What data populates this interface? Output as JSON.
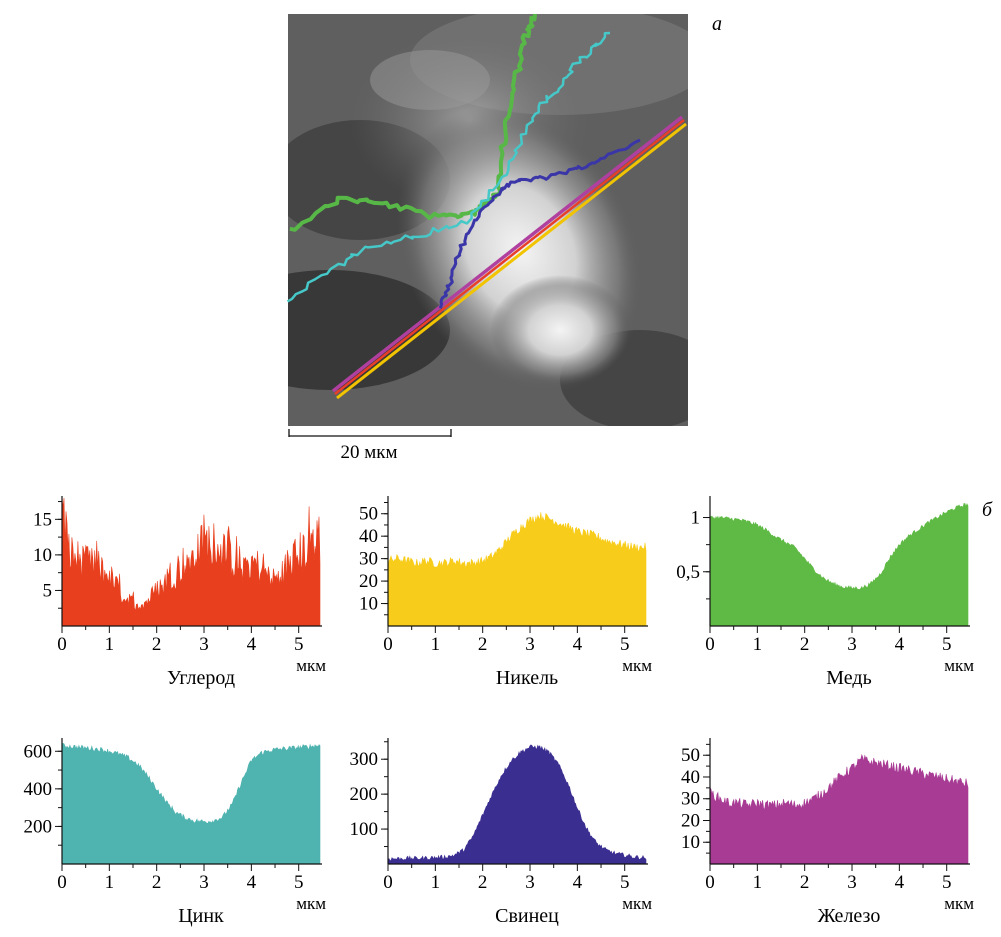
{
  "panel_a": {
    "label": "а",
    "scale_bar_label": "20 мкм",
    "trace_colors": [
      "#e83e2a",
      "#f2c400",
      "#58b847",
      "#46c8c8",
      "#3a36a8",
      "#b040a0"
    ]
  },
  "panel_b": {
    "label": "б"
  },
  "chart_data": [
    {
      "type": "area",
      "name": "Углерод",
      "color": "#e8401e",
      "xlabel": "мкм",
      "xlim": [
        0,
        5.45
      ],
      "ylim": [
        0,
        18
      ],
      "xticks": [
        "0",
        "1",
        "2",
        "3",
        "4",
        "5"
      ],
      "yticks": [
        "5",
        "10",
        "15"
      ],
      "x": [
        0,
        0.1,
        0.2,
        0.4,
        0.6,
        0.8,
        1.0,
        1.2,
        1.4,
        1.6,
        1.8,
        2.0,
        2.2,
        2.4,
        2.6,
        2.8,
        3.0,
        3.2,
        3.4,
        3.6,
        3.8,
        4.0,
        4.2,
        4.4,
        4.6,
        4.8,
        5.0,
        5.2,
        5.4
      ],
      "y": [
        17,
        12,
        10,
        9,
        8.5,
        8,
        7,
        5,
        3.5,
        3,
        3.5,
        5,
        6.5,
        7.5,
        9,
        10,
        11.5,
        12,
        10.5,
        9.5,
        8.5,
        9,
        8,
        7,
        6.5,
        9,
        10,
        11,
        12
      ]
    },
    {
      "type": "area",
      "name": "Никель",
      "color": "#f7cc1a",
      "xlabel": "мкм",
      "xlim": [
        0,
        5.45
      ],
      "ylim": [
        0,
        57
      ],
      "xticks": [
        "0",
        "1",
        "2",
        "3",
        "4",
        "5"
      ],
      "yticks": [
        "10",
        "20",
        "30",
        "40",
        "50"
      ],
      "x": [
        0,
        0.2,
        0.4,
        0.6,
        0.8,
        1.0,
        1.2,
        1.4,
        1.6,
        1.8,
        2.0,
        2.2,
        2.4,
        2.6,
        2.8,
        3.0,
        3.2,
        3.4,
        3.6,
        3.8,
        4.0,
        4.2,
        4.4,
        4.6,
        4.8,
        5.0,
        5.2,
        5.4
      ],
      "y": [
        29,
        30,
        29,
        28,
        29,
        28,
        28,
        29,
        28,
        28,
        29,
        31,
        35,
        40,
        44,
        47,
        49,
        48,
        46,
        44,
        42,
        41,
        40,
        38,
        37,
        36,
        35,
        35
      ]
    },
    {
      "type": "area",
      "name": "Медь",
      "color": "#5fba45",
      "xlabel": "мкм",
      "xlim": [
        0,
        5.45
      ],
      "ylim": [
        0,
        1.18
      ],
      "xticks": [
        "0",
        "1",
        "2",
        "3",
        "4",
        "5"
      ],
      "yticks": [
        "0,5",
        "1"
      ],
      "x": [
        0,
        0.2,
        0.4,
        0.6,
        0.8,
        1.0,
        1.2,
        1.4,
        1.6,
        1.8,
        2.0,
        2.2,
        2.4,
        2.6,
        2.8,
        3.0,
        3.2,
        3.4,
        3.6,
        3.8,
        4.0,
        4.2,
        4.4,
        4.6,
        4.8,
        5.0,
        5.2,
        5.4
      ],
      "y": [
        1.0,
        1.0,
        0.99,
        0.98,
        0.96,
        0.93,
        0.88,
        0.82,
        0.77,
        0.72,
        0.62,
        0.52,
        0.44,
        0.39,
        0.36,
        0.35,
        0.35,
        0.39,
        0.48,
        0.63,
        0.75,
        0.83,
        0.89,
        0.95,
        1.0,
        1.05,
        1.09,
        1.12
      ]
    },
    {
      "type": "area",
      "name": "Цинк",
      "color": "#4fb3b0",
      "xlabel": "мкм",
      "xlim": [
        0,
        5.45
      ],
      "ylim": [
        0,
        660
      ],
      "xticks": [
        "0",
        "1",
        "2",
        "3",
        "4",
        "5"
      ],
      "yticks": [
        "200",
        "400",
        "600"
      ],
      "x": [
        0,
        0.2,
        0.4,
        0.6,
        0.8,
        1.0,
        1.2,
        1.4,
        1.6,
        1.8,
        2.0,
        2.2,
        2.4,
        2.6,
        2.8,
        3.0,
        3.2,
        3.4,
        3.6,
        3.8,
        4.0,
        4.2,
        4.4,
        4.6,
        4.8,
        5.0,
        5.2,
        5.4
      ],
      "y": [
        630,
        625,
        620,
        615,
        610,
        600,
        585,
        565,
        530,
        470,
        400,
        330,
        275,
        245,
        230,
        225,
        230,
        250,
        320,
        440,
        550,
        590,
        605,
        612,
        615,
        620,
        625,
        630
      ]
    },
    {
      "type": "area",
      "name": "Свинец",
      "color": "#3b2e91",
      "xlabel": "мкм",
      "xlim": [
        0,
        5.45
      ],
      "ylim": [
        0,
        355
      ],
      "xticks": [
        "0",
        "1",
        "2",
        "3",
        "4",
        "5"
      ],
      "yticks": [
        "100",
        "200",
        "300"
      ],
      "x": [
        0,
        0.2,
        0.4,
        0.6,
        0.8,
        1.0,
        1.2,
        1.4,
        1.6,
        1.8,
        2.0,
        2.2,
        2.4,
        2.6,
        2.8,
        3.0,
        3.2,
        3.4,
        3.6,
        3.8,
        4.0,
        4.2,
        4.4,
        4.6,
        4.8,
        5.0,
        5.2,
        5.4
      ],
      "y": [
        15,
        15,
        16,
        16,
        17,
        18,
        20,
        25,
        40,
        80,
        140,
        200,
        255,
        295,
        320,
        335,
        335,
        320,
        285,
        230,
        160,
        100,
        60,
        40,
        30,
        25,
        20,
        18
      ]
    },
    {
      "type": "area",
      "name": "Железо",
      "color": "#a83b94",
      "xlabel": "мкм",
      "xlim": [
        0,
        5.45
      ],
      "ylim": [
        0,
        57
      ],
      "xticks": [
        "0",
        "1",
        "2",
        "3",
        "4",
        "5"
      ],
      "yticks": [
        "10",
        "20",
        "30",
        "40",
        "50"
      ],
      "x": [
        0,
        0.2,
        0.4,
        0.6,
        0.8,
        1.0,
        1.2,
        1.4,
        1.6,
        1.8,
        2.0,
        2.2,
        2.4,
        2.6,
        2.8,
        3.0,
        3.2,
        3.4,
        3.6,
        3.8,
        4.0,
        4.2,
        4.4,
        4.6,
        4.8,
        5.0,
        5.2,
        5.4
      ],
      "y": [
        33,
        30,
        28,
        28,
        27,
        28,
        27,
        27,
        28,
        27,
        28,
        30,
        33,
        37,
        41,
        44,
        48,
        47,
        46,
        45,
        44,
        43,
        42,
        41,
        40,
        39,
        38,
        37
      ]
    }
  ]
}
